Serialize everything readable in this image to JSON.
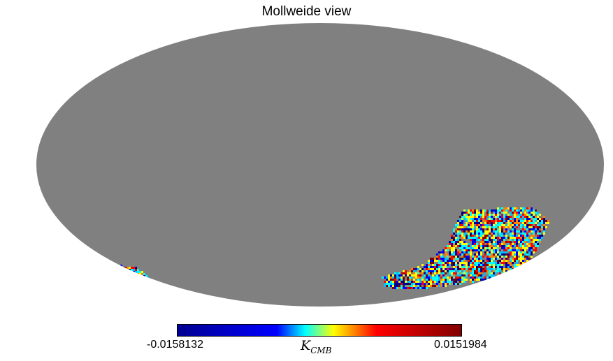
{
  "title": "Mollweide view",
  "colorbar": {
    "min_label": "-0.0158132",
    "max_label": "0.0151984",
    "unit_main": "K",
    "unit_sub": "CMB",
    "colormap": "jet",
    "colors": [
      "#00008f",
      "#0000ff",
      "#00ffff",
      "#ffff00",
      "#ff0000",
      "#800000"
    ]
  },
  "map": {
    "projection": "mollweide",
    "background_color": "#808080",
    "masked_fraction_note_color": "#808080"
  }
}
